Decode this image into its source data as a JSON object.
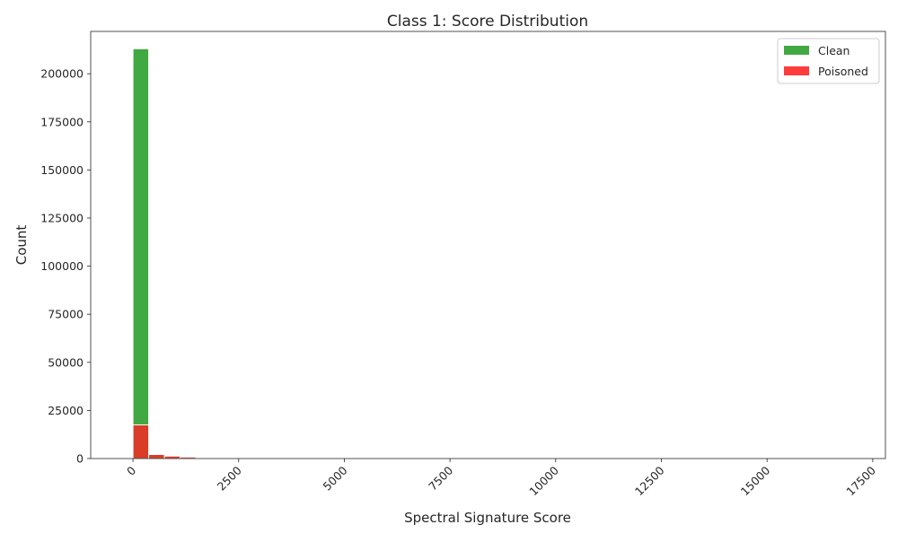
{
  "chart_data": {
    "type": "bar",
    "title": "Class 1: Score Distribution",
    "xlabel": "Spectral Signature Score",
    "ylabel": "Count",
    "xlim": [
      -1000,
      17800
    ],
    "ylim": [
      0,
      222000
    ],
    "x_ticks": [
      "0",
      "2500",
      "5000",
      "7500",
      "10000",
      "12500",
      "15000",
      "17500"
    ],
    "y_ticks": [
      "0",
      "25000",
      "50000",
      "75000",
      "100000",
      "125000",
      "150000",
      "175000",
      "200000"
    ],
    "legend_position": "top-right",
    "grid": false,
    "bin_width": 372,
    "bin_start": 0,
    "series": [
      {
        "name": "Clean",
        "color": "#2ca02c",
        "values": [
          213000,
          2400,
          1100,
          600,
          250,
          120,
          60,
          30,
          15,
          8
        ]
      },
      {
        "name": "Poisoned",
        "color": "#ff2020",
        "values": [
          17500,
          2100,
          1300,
          800,
          350,
          160,
          70,
          30,
          10,
          5
        ]
      }
    ]
  }
}
